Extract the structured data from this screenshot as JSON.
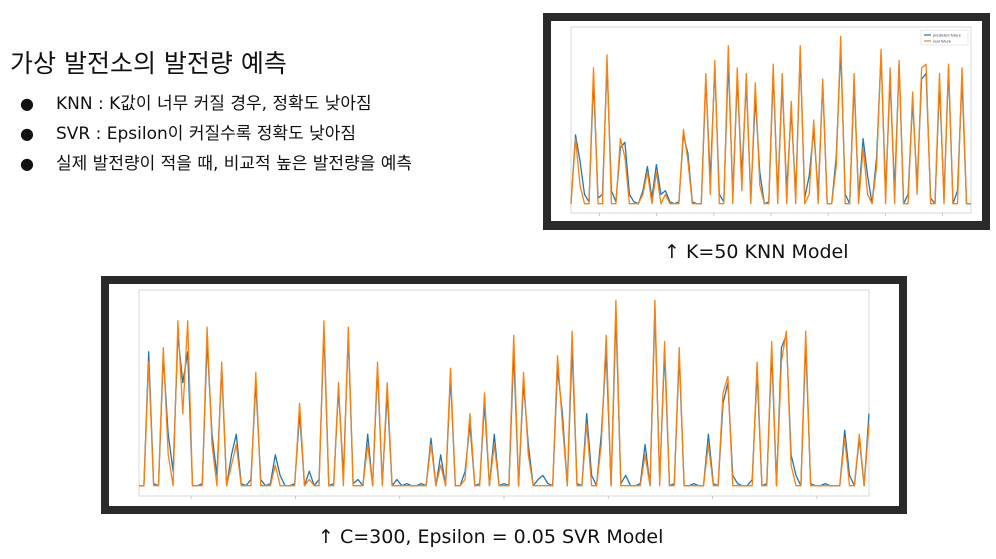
{
  "slide": {
    "title": "가상 발전소의 발전량 예측",
    "bullets": [
      "KNN : K값이 너무 커질 경우, 정확도 낮아짐",
      "SVR : Epsilon이 커질수록 정확도 낮아짐",
      "실제 발전량이 적을 때, 비교적 높은 발전량을 예측"
    ],
    "bullet_symbol": "●",
    "knn_caption": "↑ K=50 KNN Model",
    "svr_caption": "↑ C=300, Epsilon = 0.05 SVR Model"
  },
  "colors": {
    "predicted": "#1f77b4",
    "real": "#ff7f0e"
  },
  "chart_data": [
    {
      "type": "line",
      "title": "",
      "legend": {
        "placement": "top-right",
        "entries": [
          "predicted future",
          "real future"
        ]
      },
      "ylim": [
        0,
        1
      ],
      "series": [
        {
          "name": "predicted future",
          "values": [
            0.05,
            0.42,
            0.28,
            0.1,
            0.06,
            0.72,
            0.08,
            0.1,
            0.8,
            0.12,
            0.06,
            0.35,
            0.38,
            0.1,
            0.06,
            0.05,
            0.12,
            0.25,
            0.08,
            0.26,
            0.1,
            0.12,
            0.06,
            0.05,
            0.06,
            0.42,
            0.32,
            0.06,
            0.05,
            0.05,
            0.72,
            0.18,
            0.78,
            0.1,
            0.06,
            0.82,
            0.1,
            0.72,
            0.2,
            0.7,
            0.08,
            0.62,
            0.22,
            0.05,
            0.06,
            0.75,
            0.1,
            0.7,
            0.12,
            0.55,
            0.1,
            0.85,
            0.08,
            0.2,
            0.45,
            0.1,
            0.7,
            0.05,
            0.05,
            0.3,
            0.88,
            0.1,
            0.05,
            0.7,
            0.08,
            0.4,
            0.2,
            0.05,
            0.3,
            0.85,
            0.1,
            0.72,
            0.12,
            0.8,
            0.05,
            0.1,
            0.6,
            0.15,
            0.72,
            0.75,
            0.08,
            0.05,
            0.7,
            0.08,
            0.78,
            0.05,
            0.12,
            0.72,
            0.05,
            0.05
          ]
        },
        {
          "name": "real future",
          "values": [
            0.05,
            0.4,
            0.15,
            0.05,
            0.05,
            0.78,
            0.05,
            0.05,
            0.85,
            0.05,
            0.05,
            0.4,
            0.3,
            0.05,
            0.05,
            0.05,
            0.1,
            0.22,
            0.05,
            0.22,
            0.05,
            0.1,
            0.05,
            0.05,
            0.05,
            0.45,
            0.28,
            0.05,
            0.05,
            0.05,
            0.75,
            0.1,
            0.82,
            0.05,
            0.05,
            0.9,
            0.05,
            0.78,
            0.12,
            0.75,
            0.05,
            0.7,
            0.15,
            0.05,
            0.05,
            0.8,
            0.05,
            0.75,
            0.05,
            0.6,
            0.05,
            0.9,
            0.05,
            0.1,
            0.5,
            0.05,
            0.72,
            0.05,
            0.05,
            0.25,
            0.95,
            0.05,
            0.05,
            0.75,
            0.05,
            0.35,
            0.1,
            0.05,
            0.25,
            0.88,
            0.05,
            0.78,
            0.05,
            0.82,
            0.05,
            0.05,
            0.65,
            0.1,
            0.78,
            0.8,
            0.05,
            0.05,
            0.75,
            0.05,
            0.8,
            0.05,
            0.05,
            0.78,
            0.05,
            0.05
          ]
        }
      ]
    },
    {
      "type": "line",
      "title": "",
      "legend": {
        "placement": "top-right",
        "entries": []
      },
      "ylim": [
        0,
        1
      ],
      "series": [
        {
          "name": "",
          "values": [
            0.05,
            0.05,
            0.7,
            0.06,
            0.05,
            0.68,
            0.3,
            0.12,
            0.78,
            0.55,
            0.7,
            0.05,
            0.05,
            0.06,
            0.75,
            0.3,
            0.1,
            0.62,
            0.05,
            0.2,
            0.3,
            0.06,
            0.05,
            0.08,
            0.55,
            0.08,
            0.05,
            0.06,
            0.2,
            0.1,
            0.05,
            0.05,
            0.06,
            0.4,
            0.05,
            0.12,
            0.05,
            0.08,
            0.8,
            0.05,
            0.06,
            0.52,
            0.1,
            0.78,
            0.06,
            0.08,
            0.05,
            0.3,
            0.05,
            0.62,
            0.06,
            0.5,
            0.05,
            0.08,
            0.05,
            0.06,
            0.05,
            0.05,
            0.06,
            0.05,
            0.28,
            0.05,
            0.2,
            0.05,
            0.58,
            0.05,
            0.05,
            0.12,
            0.35,
            0.05,
            0.06,
            0.45,
            0.05,
            0.3,
            0.05,
            0.06,
            0.05,
            0.7,
            0.05,
            0.55,
            0.25,
            0.05,
            0.08,
            0.1,
            0.06,
            0.05,
            0.62,
            0.4,
            0.05,
            0.72,
            0.06,
            0.05,
            0.4,
            0.1,
            0.05,
            0.3,
            0.7,
            0.05,
            0.88,
            0.06,
            0.1,
            0.05,
            0.05,
            0.06,
            0.25,
            0.05,
            0.9,
            0.08,
            0.7,
            0.05,
            0.06,
            0.68,
            0.05,
            0.05,
            0.06,
            0.05,
            0.05,
            0.3,
            0.06,
            0.05,
            0.45,
            0.55,
            0.1,
            0.06,
            0.05,
            0.05,
            0.08,
            0.6,
            0.05,
            0.06,
            0.7,
            0.05,
            0.72,
            0.78,
            0.2,
            0.1,
            0.05,
            0.75,
            0.06,
            0.05,
            0.05,
            0.06,
            0.05,
            0.05,
            0.05,
            0.32,
            0.1,
            0.05,
            0.28,
            0.05,
            0.4
          ]
        },
        {
          "name": "",
          "values": [
            0.05,
            0.05,
            0.65,
            0.05,
            0.05,
            0.72,
            0.2,
            0.05,
            0.85,
            0.4,
            0.85,
            0.05,
            0.05,
            0.05,
            0.82,
            0.25,
            0.05,
            0.65,
            0.05,
            0.15,
            0.25,
            0.05,
            0.05,
            0.05,
            0.6,
            0.05,
            0.05,
            0.05,
            0.15,
            0.05,
            0.05,
            0.05,
            0.05,
            0.45,
            0.05,
            0.08,
            0.05,
            0.05,
            0.85,
            0.05,
            0.05,
            0.55,
            0.05,
            0.82,
            0.05,
            0.05,
            0.05,
            0.25,
            0.05,
            0.65,
            0.05,
            0.55,
            0.05,
            0.05,
            0.05,
            0.05,
            0.05,
            0.05,
            0.05,
            0.05,
            0.25,
            0.05,
            0.15,
            0.05,
            0.62,
            0.05,
            0.05,
            0.08,
            0.4,
            0.05,
            0.05,
            0.5,
            0.05,
            0.25,
            0.05,
            0.05,
            0.05,
            0.78,
            0.05,
            0.6,
            0.2,
            0.05,
            0.05,
            0.05,
            0.05,
            0.05,
            0.68,
            0.35,
            0.05,
            0.8,
            0.05,
            0.05,
            0.35,
            0.05,
            0.05,
            0.25,
            0.78,
            0.05,
            0.95,
            0.05,
            0.05,
            0.05,
            0.05,
            0.05,
            0.2,
            0.05,
            0.95,
            0.05,
            0.75,
            0.05,
            0.05,
            0.72,
            0.05,
            0.05,
            0.05,
            0.05,
            0.05,
            0.25,
            0.05,
            0.05,
            0.5,
            0.58,
            0.05,
            0.05,
            0.05,
            0.05,
            0.05,
            0.65,
            0.05,
            0.05,
            0.75,
            0.05,
            0.65,
            0.8,
            0.15,
            0.05,
            0.05,
            0.8,
            0.05,
            0.05,
            0.05,
            0.05,
            0.05,
            0.05,
            0.05,
            0.28,
            0.05,
            0.05,
            0.3,
            0.05,
            0.35
          ]
        }
      ]
    }
  ]
}
